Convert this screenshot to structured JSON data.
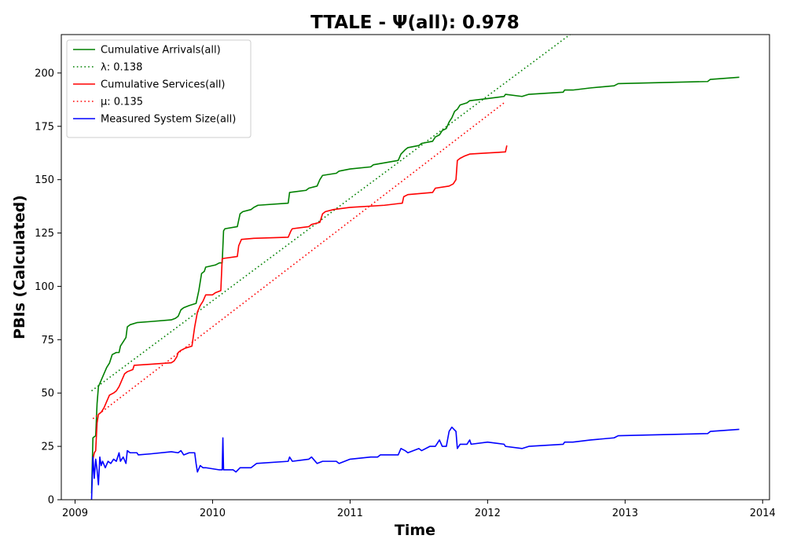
{
  "chart_data": {
    "type": "line",
    "title": "TTALE -  Ψ(all): 0.978",
    "xlabel": "Time",
    "ylabel": "PBIs (Calculated)",
    "xlim": [
      2008.9,
      2014.05
    ],
    "ylim": [
      0,
      218
    ],
    "x_ticks": [
      2009,
      2010,
      2011,
      2012,
      2013,
      2014
    ],
    "x_tick_labels": [
      "2009",
      "2010",
      "2011",
      "2012",
      "2013",
      "2014"
    ],
    "y_ticks": [
      0,
      25,
      50,
      75,
      100,
      125,
      150,
      175,
      200
    ],
    "y_tick_labels": [
      "0",
      "25",
      "50",
      "75",
      "100",
      "125",
      "150",
      "175",
      "200"
    ],
    "grid": false,
    "legend_position": "upper-left",
    "series": [
      {
        "name": "Cumulative Arrivals(all)",
        "color": "#008000",
        "style": "solid",
        "points": [
          [
            2009.12,
            3
          ],
          [
            2009.13,
            29
          ],
          [
            2009.15,
            30
          ],
          [
            2009.16,
            45
          ],
          [
            2009.17,
            53
          ],
          [
            2009.19,
            56
          ],
          [
            2009.21,
            59
          ],
          [
            2009.23,
            62
          ],
          [
            2009.25,
            64
          ],
          [
            2009.27,
            68
          ],
          [
            2009.3,
            69
          ],
          [
            2009.32,
            69
          ],
          [
            2009.33,
            72
          ],
          [
            2009.35,
            74
          ],
          [
            2009.37,
            76
          ],
          [
            2009.38,
            81
          ],
          [
            2009.4,
            82
          ],
          [
            2009.45,
            83
          ],
          [
            2009.55,
            83.5
          ],
          [
            2009.7,
            84.3
          ],
          [
            2009.73,
            85
          ],
          [
            2009.75,
            86
          ],
          [
            2009.77,
            89
          ],
          [
            2009.79,
            90
          ],
          [
            2009.83,
            91
          ],
          [
            2009.88,
            92
          ],
          [
            2009.9,
            98
          ],
          [
            2009.92,
            106
          ],
          [
            2009.94,
            107
          ],
          [
            2009.95,
            109
          ],
          [
            2010.02,
            110
          ],
          [
            2010.05,
            111
          ],
          [
            2010.07,
            111
          ],
          [
            2010.08,
            126
          ],
          [
            2010.09,
            127
          ],
          [
            2010.18,
            128
          ],
          [
            2010.19,
            131
          ],
          [
            2010.2,
            134
          ],
          [
            2010.22,
            135
          ],
          [
            2010.28,
            136
          ],
          [
            2010.3,
            137
          ],
          [
            2010.33,
            138
          ],
          [
            2010.55,
            139
          ],
          [
            2010.56,
            144
          ],
          [
            2010.68,
            145
          ],
          [
            2010.7,
            146
          ],
          [
            2010.76,
            147
          ],
          [
            2010.78,
            150
          ],
          [
            2010.8,
            152
          ],
          [
            2010.9,
            153
          ],
          [
            2010.92,
            154
          ],
          [
            2011.0,
            155
          ],
          [
            2011.15,
            156
          ],
          [
            2011.17,
            157
          ],
          [
            2011.35,
            159
          ],
          [
            2011.37,
            162
          ],
          [
            2011.4,
            164
          ],
          [
            2011.42,
            165
          ],
          [
            2011.5,
            166
          ],
          [
            2011.52,
            167
          ],
          [
            2011.6,
            168
          ],
          [
            2011.62,
            170
          ],
          [
            2011.65,
            171
          ],
          [
            2011.67,
            173
          ],
          [
            2011.7,
            174
          ],
          [
            2011.72,
            177
          ],
          [
            2011.74,
            179
          ],
          [
            2011.76,
            182
          ],
          [
            2011.78,
            183
          ],
          [
            2011.8,
            185
          ],
          [
            2011.85,
            186
          ],
          [
            2011.87,
            187
          ],
          [
            2012.0,
            188
          ],
          [
            2012.12,
            189
          ],
          [
            2012.13,
            190
          ],
          [
            2012.25,
            189
          ],
          [
            2012.3,
            190
          ],
          [
            2012.55,
            191
          ],
          [
            2012.56,
            192
          ],
          [
            2012.62,
            192
          ],
          [
            2012.75,
            193
          ],
          [
            2012.92,
            194
          ],
          [
            2012.95,
            195
          ],
          [
            2013.6,
            196
          ],
          [
            2013.62,
            197
          ],
          [
            2013.83,
            198
          ]
        ]
      },
      {
        "name": "λ: 0.138",
        "color": "#008000",
        "style": "dotted",
        "points": [
          [
            2009.12,
            51
          ],
          [
            2012.62,
            219
          ]
        ]
      },
      {
        "name": "Cumulative Services(all)",
        "color": "#ff0000",
        "style": "solid",
        "points": [
          [
            2009.13,
            19
          ],
          [
            2009.14,
            22
          ],
          [
            2009.15,
            23
          ],
          [
            2009.16,
            36
          ],
          [
            2009.17,
            40
          ],
          [
            2009.19,
            41
          ],
          [
            2009.21,
            43
          ],
          [
            2009.23,
            46
          ],
          [
            2009.25,
            49
          ],
          [
            2009.28,
            50
          ],
          [
            2009.3,
            51
          ],
          [
            2009.32,
            53
          ],
          [
            2009.34,
            56
          ],
          [
            2009.36,
            59
          ],
          [
            2009.38,
            60
          ],
          [
            2009.42,
            61
          ],
          [
            2009.43,
            63
          ],
          [
            2009.55,
            63.5
          ],
          [
            2009.7,
            64.2
          ],
          [
            2009.72,
            65
          ],
          [
            2009.74,
            67
          ],
          [
            2009.75,
            69
          ],
          [
            2009.77,
            70
          ],
          [
            2009.8,
            71
          ],
          [
            2009.85,
            72
          ],
          [
            2009.87,
            81
          ],
          [
            2009.89,
            88
          ],
          [
            2009.91,
            91
          ],
          [
            2009.93,
            93
          ],
          [
            2009.95,
            96
          ],
          [
            2010.0,
            96
          ],
          [
            2010.02,
            97
          ],
          [
            2010.06,
            98
          ],
          [
            2010.07,
            113
          ],
          [
            2010.18,
            114
          ],
          [
            2010.19,
            119
          ],
          [
            2010.21,
            122
          ],
          [
            2010.3,
            122.5
          ],
          [
            2010.55,
            123
          ],
          [
            2010.57,
            126
          ],
          [
            2010.58,
            127
          ],
          [
            2010.7,
            128
          ],
          [
            2010.72,
            129
          ],
          [
            2010.78,
            130
          ],
          [
            2010.8,
            134
          ],
          [
            2010.82,
            135
          ],
          [
            2010.88,
            136
          ],
          [
            2011.0,
            137
          ],
          [
            2011.25,
            138
          ],
          [
            2011.38,
            139
          ],
          [
            2011.39,
            142
          ],
          [
            2011.42,
            143
          ],
          [
            2011.6,
            144
          ],
          [
            2011.62,
            146
          ],
          [
            2011.72,
            147
          ],
          [
            2011.75,
            148
          ],
          [
            2011.77,
            150
          ],
          [
            2011.78,
            159
          ],
          [
            2011.8,
            160
          ],
          [
            2011.83,
            161
          ],
          [
            2011.87,
            162
          ],
          [
            2012.0,
            162.5
          ],
          [
            2012.13,
            163
          ],
          [
            2012.14,
            166
          ]
        ]
      },
      {
        "name": "μ: 0.135",
        "color": "#ff0000",
        "style": "dotted",
        "points": [
          [
            2009.13,
            38
          ],
          [
            2012.13,
            186.5
          ]
        ]
      },
      {
        "name": "Measured System Size(all)",
        "color": "#0000ff",
        "style": "solid",
        "points": [
          [
            2009.12,
            0
          ],
          [
            2009.13,
            20
          ],
          [
            2009.14,
            10
          ],
          [
            2009.15,
            19
          ],
          [
            2009.16,
            14
          ],
          [
            2009.17,
            7
          ],
          [
            2009.18,
            20
          ],
          [
            2009.19,
            16
          ],
          [
            2009.2,
            18
          ],
          [
            2009.22,
            15
          ],
          [
            2009.24,
            18
          ],
          [
            2009.26,
            17
          ],
          [
            2009.28,
            19
          ],
          [
            2009.3,
            18
          ],
          [
            2009.32,
            22
          ],
          [
            2009.33,
            18
          ],
          [
            2009.35,
            20
          ],
          [
            2009.37,
            17
          ],
          [
            2009.38,
            23
          ],
          [
            2009.4,
            22
          ],
          [
            2009.45,
            22
          ],
          [
            2009.46,
            21
          ],
          [
            2009.55,
            21.5
          ],
          [
            2009.7,
            22.5
          ],
          [
            2009.75,
            22
          ],
          [
            2009.77,
            23
          ],
          [
            2009.79,
            21
          ],
          [
            2009.83,
            22
          ],
          [
            2009.87,
            22
          ],
          [
            2009.88,
            17
          ],
          [
            2009.89,
            13
          ],
          [
            2009.91,
            16
          ],
          [
            2009.93,
            15
          ],
          [
            2009.95,
            15
          ],
          [
            2010.05,
            14
          ],
          [
            2010.07,
            14
          ],
          [
            2010.075,
            29
          ],
          [
            2010.08,
            14
          ],
          [
            2010.15,
            14
          ],
          [
            2010.17,
            13
          ],
          [
            2010.2,
            15
          ],
          [
            2010.28,
            15
          ],
          [
            2010.32,
            17
          ],
          [
            2010.55,
            18
          ],
          [
            2010.56,
            20
          ],
          [
            2010.58,
            18
          ],
          [
            2010.7,
            19
          ],
          [
            2010.72,
            20
          ],
          [
            2010.76,
            17
          ],
          [
            2010.8,
            18
          ],
          [
            2010.9,
            18
          ],
          [
            2010.92,
            17
          ],
          [
            2011.0,
            19
          ],
          [
            2011.15,
            20
          ],
          [
            2011.2,
            20
          ],
          [
            2011.22,
            21
          ],
          [
            2011.35,
            21
          ],
          [
            2011.37,
            24
          ],
          [
            2011.4,
            23
          ],
          [
            2011.42,
            22
          ],
          [
            2011.5,
            24
          ],
          [
            2011.52,
            23
          ],
          [
            2011.58,
            25
          ],
          [
            2011.62,
            25
          ],
          [
            2011.65,
            28
          ],
          [
            2011.67,
            25
          ],
          [
            2011.7,
            25
          ],
          [
            2011.72,
            32
          ],
          [
            2011.74,
            34
          ],
          [
            2011.77,
            32
          ],
          [
            2011.78,
            24
          ],
          [
            2011.8,
            26
          ],
          [
            2011.85,
            26
          ],
          [
            2011.87,
            28
          ],
          [
            2011.88,
            26
          ],
          [
            2012.0,
            27
          ],
          [
            2012.12,
            26
          ],
          [
            2012.13,
            25
          ],
          [
            2012.25,
            24
          ],
          [
            2012.3,
            25
          ],
          [
            2012.55,
            26
          ],
          [
            2012.56,
            27
          ],
          [
            2012.62,
            27
          ],
          [
            2012.75,
            28
          ],
          [
            2012.92,
            29
          ],
          [
            2012.95,
            30
          ],
          [
            2013.6,
            31
          ],
          [
            2013.62,
            32
          ],
          [
            2013.83,
            33
          ]
        ]
      }
    ]
  }
}
